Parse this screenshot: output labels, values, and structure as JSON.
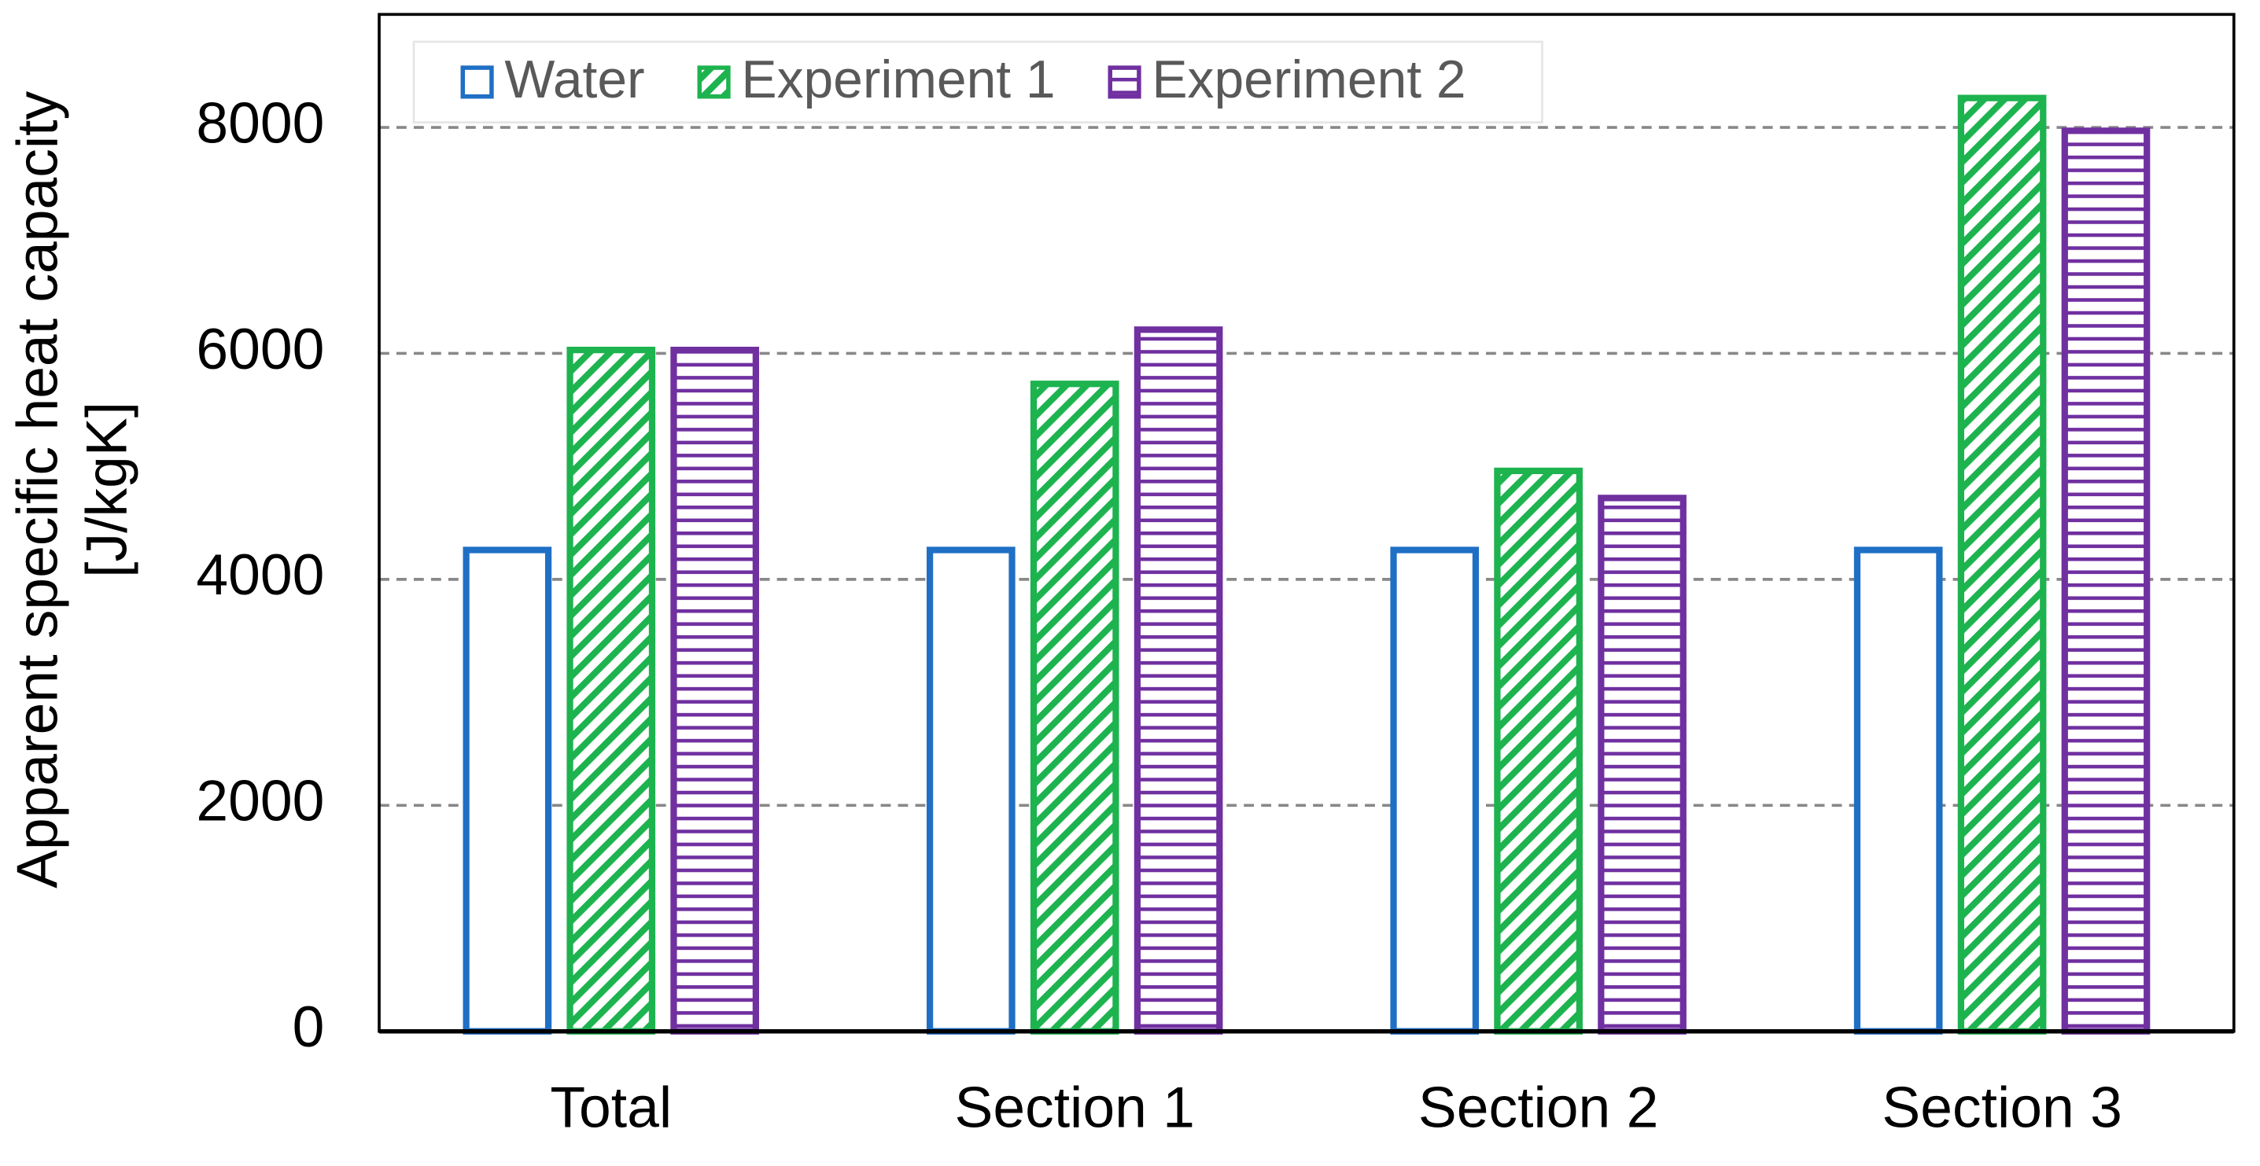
{
  "chart_data": {
    "type": "bar",
    "ylabel": [
      "Apparent specific heat capacity",
      "[J/kgK]"
    ],
    "categories": [
      "Total",
      "Section 1",
      "Section 2",
      "Section 3"
    ],
    "series": [
      {
        "name": "Water",
        "color": "#1f6fc5",
        "pattern": "none",
        "values": [
          4260,
          4260,
          4260,
          4260
        ]
      },
      {
        "name": "Experiment 1",
        "color": "#1db34f",
        "pattern": "diagonal",
        "values": [
          6030,
          5730,
          4960,
          8260
        ]
      },
      {
        "name": "Experiment 2",
        "color": "#7030a0",
        "pattern": "horizontal",
        "values": [
          6030,
          6210,
          4720,
          7970
        ]
      }
    ],
    "ylim": [
      0,
      9000
    ],
    "yticks": [
      0,
      2000,
      4000,
      6000,
      8000
    ],
    "grid": true,
    "legend": "top-left"
  }
}
